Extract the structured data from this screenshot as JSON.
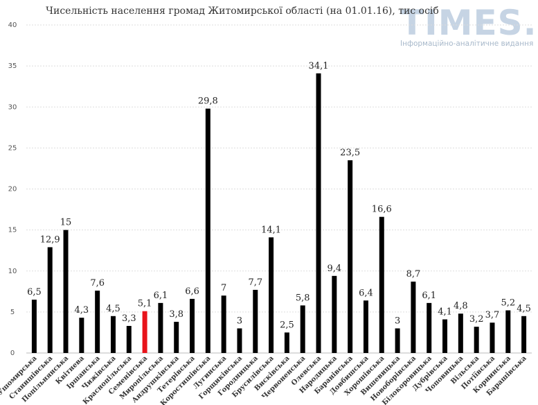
{
  "logo": {
    "name": "TIMES.ZT",
    "tagline": "Інформаційно-аналітичне видання"
  },
  "chart_data": {
    "type": "bar",
    "title": "Чисельність населення громад Житомирської області (на 01.01.16), тис осіб",
    "xlabel": "",
    "ylabel": "",
    "ylim": [
      0,
      40
    ],
    "yticks": [
      0,
      5,
      10,
      15,
      20,
      25,
      30,
      35,
      40
    ],
    "grid": true,
    "legend": "none",
    "bar_color": "#000000",
    "highlight_color": "#e8141b",
    "highlight_index": 7,
    "categories": [
      "Ушомирська",
      "Станишівська",
      "Попільнянська",
      "Квітнева",
      "Іршанська",
      "Чижівська",
      "Краснопільська",
      "Семенівська",
      "Миропільська",
      "Андрушківська",
      "Тетерівська",
      "Коростишівська",
      "Лугинська",
      "Горщиківська",
      "Городницька",
      "Брусилівська",
      "Висківська",
      "Червоненська",
      "Олевська",
      "Народицька",
      "Баранівська",
      "Довбишська",
      "Хорошівська",
      "Вишевицька",
      "Новоборівська",
      "Білокоровицька",
      "Дубрівська",
      "Чоповицька",
      "Вільська",
      "Потіївська",
      "Корнинська",
      "Барашівська"
    ],
    "values": [
      6.5,
      12.9,
      15,
      4.3,
      7.6,
      4.5,
      3.3,
      5.1,
      6.1,
      3.8,
      6.6,
      29.8,
      7,
      3,
      7.7,
      14.1,
      2.5,
      5.8,
      34.1,
      9.4,
      23.5,
      6.4,
      16.6,
      3,
      8.7,
      6.1,
      4.1,
      4.8,
      3.2,
      3.7,
      5.2,
      4.5
    ],
    "value_labels": [
      "6,5",
      "12,9",
      "15",
      "4,3",
      "7,6",
      "4,5",
      "3,3",
      "5,1",
      "6,1",
      "3,8",
      "6,6",
      "29,8",
      "7",
      "3",
      "7,7",
      "14,1",
      "2,5",
      "5,8",
      "34,1",
      "9,4",
      "23,5",
      "6,4",
      "16,6",
      "3",
      "8,7",
      "6,1",
      "4,1",
      "4,8",
      "3,2",
      "3,7",
      "5,2",
      "4,5"
    ]
  }
}
